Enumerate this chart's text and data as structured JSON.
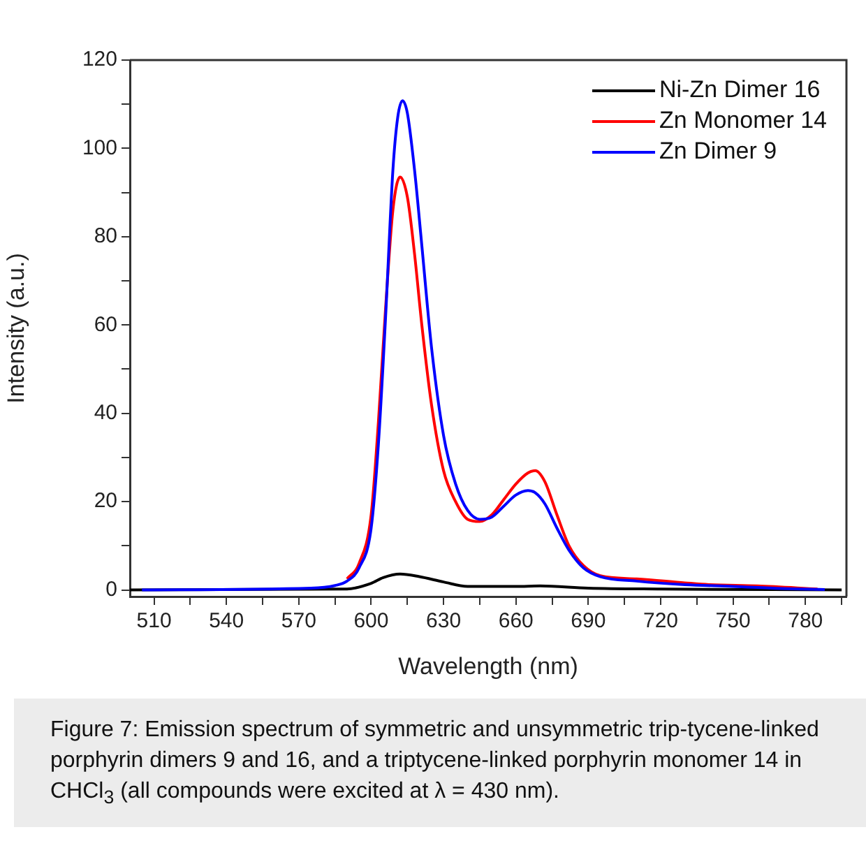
{
  "chart_data": {
    "type": "line",
    "xlabel": "Wavelength (nm)",
    "ylabel": "Intensity (a.u.)",
    "xlim": [
      500,
      797
    ],
    "ylim": [
      -1.5,
      120
    ],
    "xticks": [
      510,
      {
        "value": 525,
        "label": null
      },
      540,
      {
        "value": 555,
        "label": null
      },
      570,
      {
        "value": 585,
        "label": null
      },
      600,
      {
        "value": 615,
        "label": null
      },
      630,
      {
        "value": 645,
        "label": null
      },
      660,
      {
        "value": 675,
        "label": null
      },
      690,
      {
        "value": 705,
        "label": null
      },
      720,
      {
        "value": 735,
        "label": null
      },
      750,
      {
        "value": 765,
        "label": null
      },
      780,
      {
        "value": 795,
        "label": null
      }
    ],
    "yticks": [
      0,
      {
        "value": 10,
        "label": null
      },
      20,
      {
        "value": 30,
        "label": null
      },
      40,
      {
        "value": 50,
        "label": null
      },
      60,
      {
        "value": 70,
        "label": null
      },
      80,
      {
        "value": 90,
        "label": null
      },
      100,
      {
        "value": 110,
        "label": null
      },
      120
    ],
    "grid": false,
    "legend": "top right",
    "marker": "none",
    "line_style": "solid",
    "series": [
      {
        "name": "Ni-Zn Dimer 16",
        "color": "#000000",
        "x": [
          500,
          590,
          600,
          605,
          612,
          620,
          630,
          640,
          660,
          670,
          690,
          720,
          795
        ],
        "values": [
          0,
          0.2,
          1.5,
          2.8,
          3.6,
          3,
          1.8,
          0.8,
          0.8,
          0.9,
          0.4,
          0.2,
          0
        ]
      },
      {
        "name": "Zn Monomer 14",
        "color": "#ff0000",
        "x": [
          590,
          595,
          600,
          603,
          606,
          609,
          612,
          615,
          618,
          621,
          625,
          630,
          635,
          640,
          645,
          650,
          655,
          660,
          665,
          668,
          672,
          677,
          682,
          688,
          695,
          710,
          730,
          740,
          760,
          785
        ],
        "values": [
          2.5,
          6,
          17,
          38,
          64,
          86,
          93.5,
          89,
          76,
          60,
          42,
          27,
          20,
          16,
          15.5,
          17,
          20.5,
          24,
          26.5,
          27,
          24.5,
          17,
          10,
          5.5,
          3.2,
          2.5,
          1.6,
          1.2,
          0.9,
          0.2
        ]
      },
      {
        "name": "Zn Dimer 9",
        "color": "#0000ff",
        "x": [
          505,
          575,
          585,
          590,
          595,
          600,
          603,
          606,
          609,
          611,
          613,
          615,
          618,
          621,
          625,
          630,
          635,
          640,
          645,
          650,
          655,
          660,
          665,
          668,
          672,
          677,
          682,
          688,
          695,
          710,
          730,
          750,
          770,
          788
        ],
        "values": [
          0,
          0.4,
          1,
          2,
          5,
          14,
          33,
          62,
          95,
          107,
          110.8,
          108,
          95,
          78,
          55,
          35,
          24,
          18,
          16,
          16.5,
          19,
          21.5,
          22.5,
          22,
          19.5,
          14,
          9,
          5,
          3,
          2,
          1.2,
          0.8,
          0.3,
          0.1
        ]
      }
    ],
    "annotations": [
      "Figure 7: Emission spectrum of symmetric and unsymmetric trip-tycene-linked porphyrin dimers 9 and 16, and a triptycene-linked porphyrin monomer 14 in CHCl$_{3}$ (all compounds were excited at λ = 430 nm)."
    ]
  }
}
